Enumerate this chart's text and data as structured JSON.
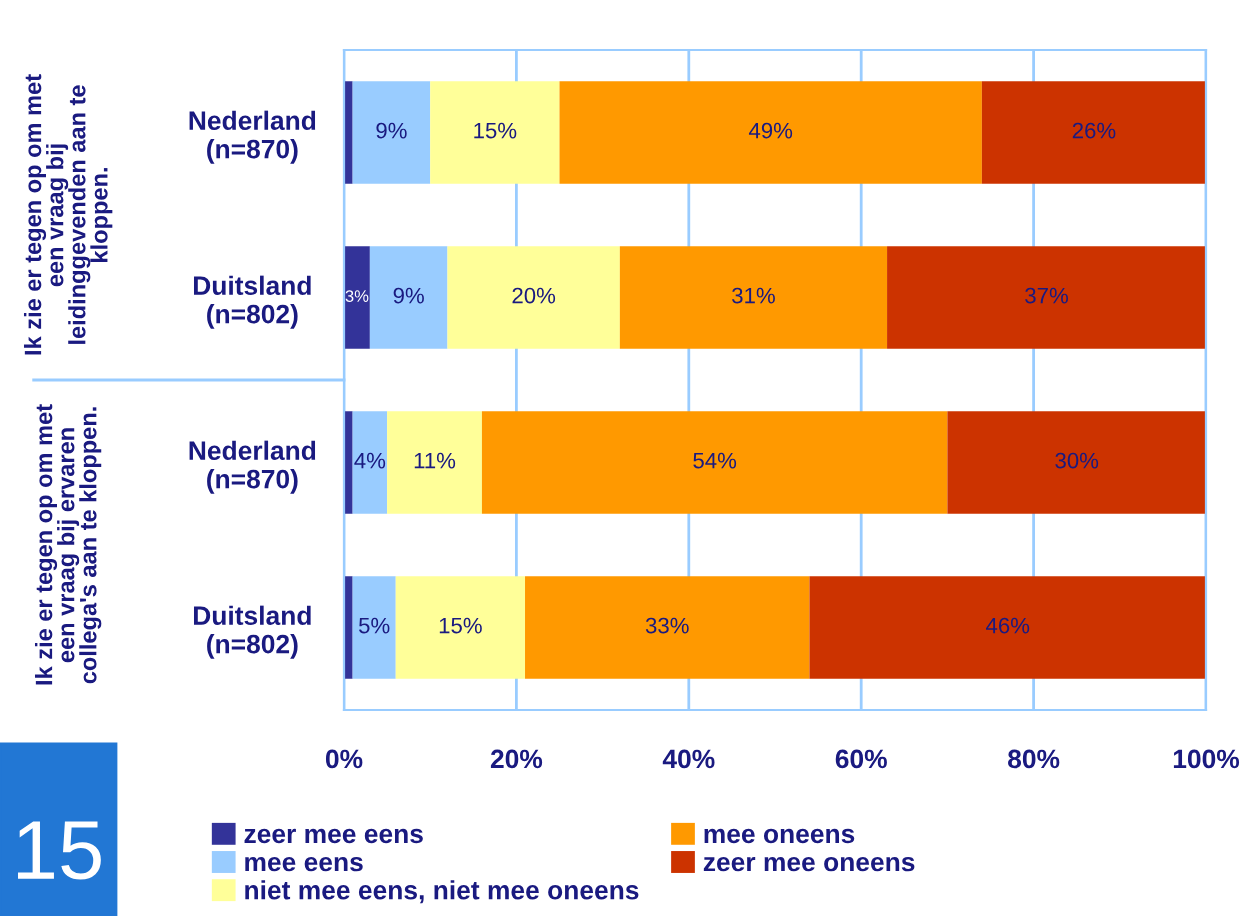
{
  "chart_data": {
    "type": "bar",
    "orientation": "horizontal",
    "stacked": true,
    "categories": [
      "Nederland\n(n=870)",
      "Duitsland\n(n=802)",
      "Nederland\n(n=870)",
      "Duitsland\n(n=802)"
    ],
    "series": [
      {
        "name": "zeer mee eens",
        "color": "#333399",
        "values": [
          1,
          3,
          1,
          1
        ],
        "value_labels": [
          null,
          "3%",
          null,
          null
        ]
      },
      {
        "name": "mee eens",
        "color": "#99ccff",
        "values": [
          9,
          9,
          4,
          5
        ],
        "value_labels": [
          "9%",
          "9%",
          "4%",
          "5%"
        ]
      },
      {
        "name": "niet mee eens, niet mee oneens",
        "color": "#ffff99",
        "values": [
          15,
          20,
          11,
          15
        ],
        "value_labels": [
          "15%",
          "20%",
          "11%",
          "15%"
        ]
      },
      {
        "name": "mee oneens",
        "color": "#ff9900",
        "values": [
          49,
          31,
          54,
          33
        ],
        "value_labels": [
          "49%",
          "31%",
          "54%",
          "33%"
        ]
      },
      {
        "name": "zeer mee oneens",
        "color": "#cc3300",
        "values": [
          26,
          37,
          30,
          46
        ],
        "value_labels": [
          "26%",
          "37%",
          "30%",
          "46%"
        ]
      }
    ],
    "xlim": [
      0,
      100
    ],
    "xticks": [
      {
        "value": 0,
        "label": "0%"
      },
      {
        "value": 20,
        "label": "20%"
      },
      {
        "value": 40,
        "label": "40%"
      },
      {
        "value": 60,
        "label": "60%"
      },
      {
        "value": 80,
        "label": "80%"
      },
      {
        "value": 100,
        "label": "100%"
      }
    ],
    "grid": "x",
    "legend": "bottom",
    "annotations": [
      "Ik zie er tegen op om met\neen vraag bij\nleidinggevenden aan te\nkloppen.",
      "Ik zie er tegen op om met\neen vraag bij ervaren\ncollega's aan te kloppen.",
      "15"
    ]
  }
}
